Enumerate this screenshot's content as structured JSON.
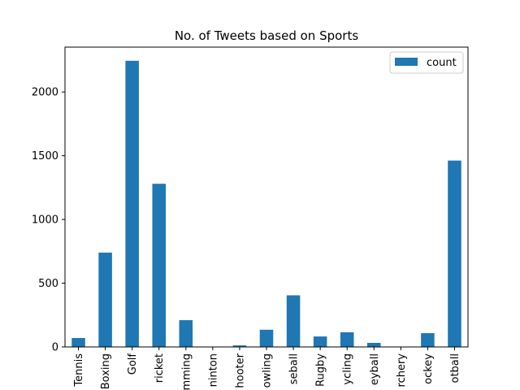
{
  "chart_data": {
    "type": "bar",
    "title": "No. of Tweets based on Sports",
    "xlabel": "",
    "ylabel": "",
    "categories": [
      "Tennis",
      "Boxing",
      "Golf",
      "Cricket",
      "Swimming",
      "Badminton",
      "Shooter",
      "Bowling",
      "Baseball",
      "Rugby",
      "Cycling",
      "Volleyball",
      "Archery",
      "Hockey",
      "Football"
    ],
    "tick_label_text": [
      "Tennis",
      "Boxing",
      "Golf",
      "ricket",
      "mming",
      "ninton",
      "hooter",
      "owling",
      "seball",
      "Rugby",
      "ycling",
      "eyball",
      "rchery",
      "ockey",
      "otball"
    ],
    "series": [
      {
        "name": "count",
        "color": "#1f77b4",
        "values": [
          70,
          740,
          2245,
          1280,
          210,
          2,
          12,
          135,
          405,
          82,
          115,
          32,
          2,
          108,
          1462
        ]
      }
    ],
    "ylim": [
      0,
      2352
    ],
    "yticks": [
      0,
      500,
      1000,
      1500,
      2000
    ],
    "grid": false,
    "legend": "top-right"
  }
}
